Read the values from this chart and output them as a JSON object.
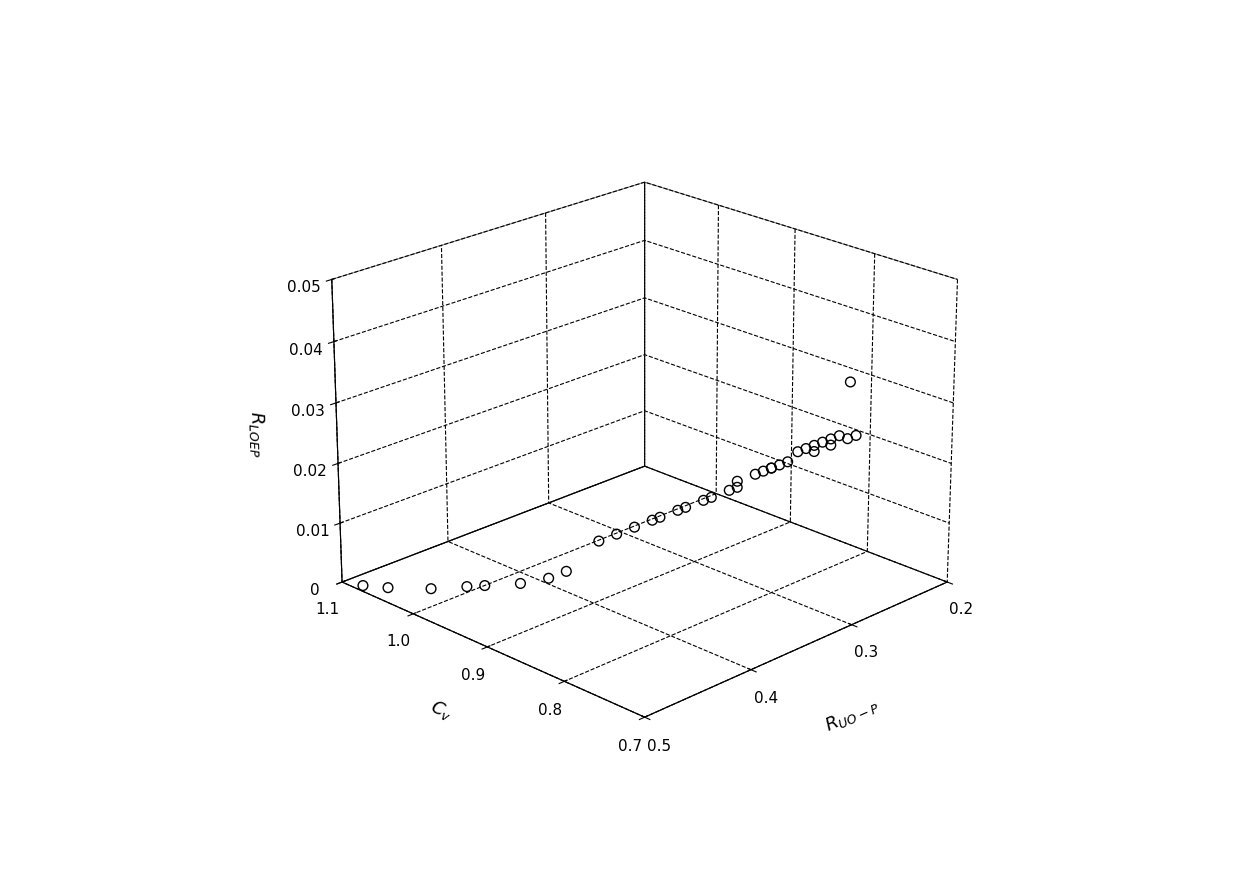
{
  "xlabel": "R_{UO-P}",
  "ylabel": "Cv",
  "zlabel": "R_{LOEP}",
  "xlim": [
    0.2,
    0.5
  ],
  "ylim": [
    0.7,
    1.1
  ],
  "zlim": [
    0,
    0.05
  ],
  "xticks": [
    0.2,
    0.3,
    0.4,
    0.5
  ],
  "yticks": [
    0.7,
    0.8,
    0.9,
    1.0,
    1.1
  ],
  "zticks": [
    0,
    0.01,
    0.02,
    0.03,
    0.04,
    0.05
  ],
  "scatter_x": [
    0.29,
    0.3,
    0.3,
    0.3,
    0.3,
    0.3,
    0.3,
    0.3,
    0.3,
    0.3,
    0.3,
    0.31,
    0.31,
    0.31,
    0.31,
    0.31,
    0.31,
    0.32,
    0.32,
    0.32,
    0.33,
    0.33,
    0.34,
    0.34,
    0.35,
    0.35,
    0.36,
    0.37,
    0.38,
    0.39,
    0.4,
    0.42,
    0.44,
    0.45,
    0.47,
    0.49,
    0.5
  ],
  "scatter_y": [
    0.72,
    0.7,
    0.71,
    0.72,
    0.73,
    0.73,
    0.74,
    0.75,
    0.75,
    0.76,
    0.77,
    0.77,
    0.78,
    0.79,
    0.79,
    0.8,
    0.81,
    0.82,
    0.82,
    0.83,
    0.84,
    0.85,
    0.86,
    0.87,
    0.88,
    0.89,
    0.9,
    0.91,
    0.92,
    0.95,
    0.96,
    0.97,
    0.99,
    1.0,
    1.02,
    1.05,
    1.07
  ],
  "scatter_z": [
    0.038,
    0.031,
    0.03,
    0.03,
    0.029,
    0.028,
    0.028,
    0.027,
    0.026,
    0.026,
    0.025,
    0.024,
    0.023,
    0.022,
    0.022,
    0.021,
    0.02,
    0.019,
    0.018,
    0.017,
    0.016,
    0.015,
    0.014,
    0.013,
    0.012,
    0.011,
    0.01,
    0.009,
    0.008,
    0.002,
    0.001,
    0.001,
    0.001,
    0.001,
    0.001,
    0.001,
    0.001
  ],
  "marker_color": "none",
  "marker_edge_color": "black",
  "marker_size": 7,
  "background_color": "white",
  "grid_color": "black",
  "grid_linestyle": "--",
  "elev": 22,
  "azim": -135
}
